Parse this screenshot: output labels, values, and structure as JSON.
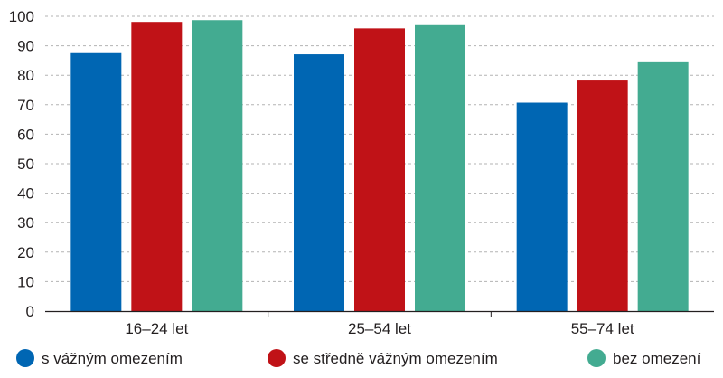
{
  "chart_data": {
    "type": "bar",
    "categories": [
      "16–24 let",
      "25–54 let",
      "55–74 let"
    ],
    "series": [
      {
        "name": "s vážným omezením",
        "color": "#0066b3",
        "values": [
          87.5,
          87.1,
          70.7
        ]
      },
      {
        "name": "se středně vážným omezením",
        "color": "#c01217",
        "values": [
          98.1,
          95.9,
          78.2
        ]
      },
      {
        "name": "bez omezení",
        "color": "#43ab91",
        "values": [
          98.7,
          97.0,
          84.4
        ]
      }
    ],
    "ylim": [
      0,
      100
    ],
    "yticks": [
      0,
      10,
      20,
      30,
      40,
      50,
      60,
      70,
      80,
      90,
      100
    ],
    "grid": true,
    "legend_position": "bottom"
  }
}
